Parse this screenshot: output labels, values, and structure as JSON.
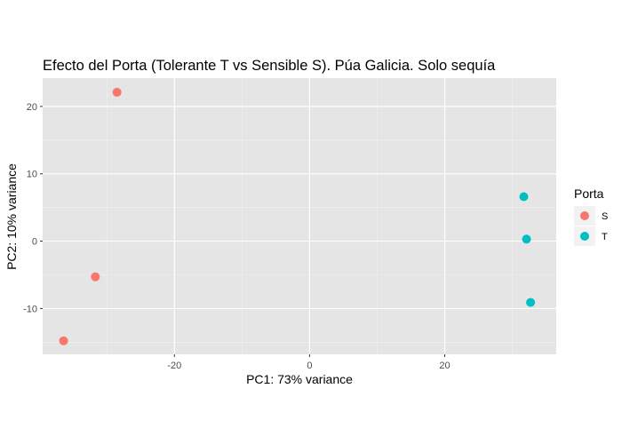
{
  "chart_data": {
    "type": "scatter",
    "title": "Efecto del Porta (Tolerante T vs Sensible S). Púa Galicia. Solo sequía",
    "xlabel": "PC1: 73% variance",
    "ylabel": "PC2: 10% variance",
    "xlim": [
      -39.5,
      36.5
    ],
    "ylim": [
      -16.8,
      24.2
    ],
    "x_ticks": [
      -20,
      0,
      20
    ],
    "y_ticks": [
      -10,
      0,
      10,
      20
    ],
    "x_minor_ticks": [
      -30,
      -10,
      10,
      30
    ],
    "y_minor_ticks": [
      -15,
      -5,
      5,
      15
    ],
    "grid": true,
    "legend": {
      "title": "Porta",
      "position": "right"
    },
    "series": [
      {
        "name": "S",
        "color": "#F8766D",
        "points": [
          {
            "x": -28.5,
            "y": 22.1
          },
          {
            "x": -31.7,
            "y": -5.3
          },
          {
            "x": -36.4,
            "y": -14.8
          }
        ]
      },
      {
        "name": "T",
        "color": "#00BFC4",
        "points": [
          {
            "x": 31.7,
            "y": 6.6
          },
          {
            "x": 32.1,
            "y": 0.3
          },
          {
            "x": 32.7,
            "y": -9.1
          }
        ]
      }
    ]
  }
}
